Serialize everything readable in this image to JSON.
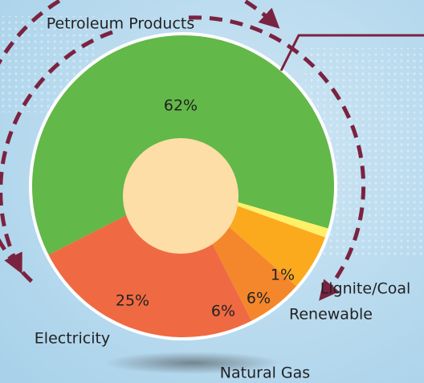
{
  "chart_data": {
    "type": "pie",
    "categories": [
      "Petroleum Products",
      "Lignite/Coal",
      "Renewable",
      "Natural Gas",
      "Electricity"
    ],
    "values": [
      62,
      1,
      6,
      6,
      25
    ],
    "value_labels": [
      "62%",
      "1%",
      "6%",
      "6%",
      "25%"
    ],
    "colors": [
      "#62b848",
      "#fff06a",
      "#fbaa1e",
      "#f4872c",
      "#ef6a42"
    ]
  }
}
